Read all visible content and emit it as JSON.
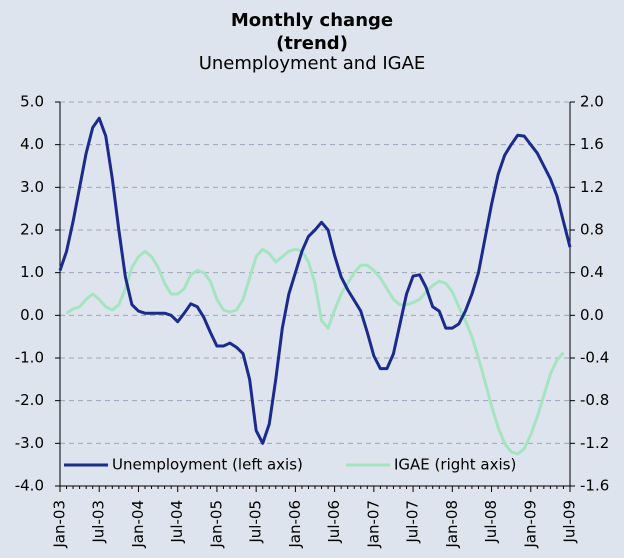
{
  "chart_data": {
    "type": "line",
    "title": "Monthly change",
    "title2": "(trend)",
    "subtitle": "Unemployment and IGAE",
    "categories": [
      "Jan-03",
      null,
      null,
      null,
      null,
      null,
      "Jul-03",
      null,
      null,
      null,
      null,
      null,
      "Jan-04",
      null,
      null,
      null,
      null,
      null,
      "Jul-04",
      null,
      null,
      null,
      null,
      null,
      "Jan-05",
      null,
      null,
      null,
      null,
      null,
      "Jul-05",
      null,
      null,
      null,
      null,
      null,
      "Jan-06",
      null,
      null,
      null,
      null,
      null,
      "Jul-06",
      null,
      null,
      null,
      null,
      null,
      "Jan-07",
      null,
      null,
      null,
      null,
      null,
      "Jul-07",
      null,
      null,
      null,
      null,
      null,
      "Jan-08",
      null,
      null,
      null,
      null,
      null,
      "Jul-08",
      null,
      null,
      null,
      null,
      null,
      "Jan-09",
      null,
      null,
      null,
      null,
      null,
      "Jul-09"
    ],
    "series": [
      {
        "name": "Unemployment (left axis)",
        "color": "#1b2a8c",
        "axis": "y",
        "values": [
          1.05,
          1.5,
          2.2,
          3.0,
          3.8,
          4.4,
          4.62,
          4.2,
          3.2,
          2.0,
          0.9,
          0.25,
          0.1,
          0.05,
          0.05,
          0.05,
          0.05,
          0.0,
          -0.15,
          0.05,
          0.27,
          0.2,
          -0.05,
          -0.4,
          -0.72,
          -0.72,
          -0.65,
          -0.75,
          -0.9,
          -1.5,
          -2.7,
          -3.0,
          -2.55,
          -1.5,
          -0.3,
          0.5,
          1.0,
          1.5,
          1.85,
          2.0,
          2.18,
          2.0,
          1.4,
          0.9,
          0.6,
          0.35,
          0.1,
          -0.4,
          -0.95,
          -1.25,
          -1.25,
          -0.9,
          -0.2,
          0.5,
          0.92,
          0.95,
          0.65,
          0.2,
          0.1,
          -0.3,
          -0.3,
          -0.2,
          0.1,
          0.5,
          1.0,
          1.8,
          2.6,
          3.3,
          3.75,
          4.0,
          4.22,
          4.2,
          4.0,
          3.8,
          3.5,
          3.2,
          2.8,
          2.2,
          1.6
        ]
      },
      {
        "name": "IGAE (right axis)",
        "color": "#a6e4c1",
        "axis": "y2",
        "values": [
          null,
          0.02,
          0.06,
          0.08,
          0.15,
          0.2,
          0.15,
          0.08,
          0.05,
          0.1,
          0.25,
          0.45,
          0.55,
          0.6,
          0.55,
          0.45,
          0.3,
          0.2,
          0.2,
          0.25,
          0.38,
          0.42,
          0.4,
          0.32,
          0.15,
          0.05,
          0.03,
          0.05,
          0.15,
          0.35,
          0.55,
          0.62,
          0.58,
          0.5,
          0.55,
          0.6,
          0.62,
          0.6,
          0.5,
          0.3,
          -0.05,
          -0.12,
          0.05,
          0.2,
          0.3,
          0.4,
          0.47,
          0.47,
          0.42,
          0.35,
          0.25,
          0.15,
          0.1,
          0.1,
          0.12,
          0.15,
          0.22,
          0.28,
          0.32,
          0.3,
          0.22,
          0.08,
          -0.05,
          -0.2,
          -0.4,
          -0.62,
          -0.85,
          -1.05,
          -1.2,
          -1.28,
          -1.3,
          -1.25,
          -1.12,
          -0.95,
          -0.75,
          -0.55,
          -0.42,
          -0.35,
          null
        ]
      }
    ],
    "ylim": [
      -4,
      5
    ],
    "yticks": [
      {
        "value": 5,
        "label": "5.0"
      },
      {
        "value": 4,
        "label": "4.0"
      },
      {
        "value": 3,
        "label": "3.0"
      },
      {
        "value": 2,
        "label": "2.0"
      },
      {
        "value": 1,
        "label": "1.0"
      },
      {
        "value": 0,
        "label": "0.0"
      },
      {
        "value": -1,
        "label": "-1.0"
      },
      {
        "value": -2,
        "label": "-2.0"
      },
      {
        "value": -3,
        "label": "-3.0"
      },
      {
        "value": -4,
        "label": "-4.0"
      }
    ],
    "y2lim": [
      -1.6,
      2.0
    ],
    "y2ticks": [
      {
        "value": 2,
        "label": "2.0"
      },
      1.6,
      1.2,
      0.8,
      0.4,
      {
        "value": 0,
        "label": "0.0"
      },
      -0.4,
      -0.8,
      -1.2,
      -1.6
    ],
    "grid": true,
    "legend": "bottom"
  }
}
